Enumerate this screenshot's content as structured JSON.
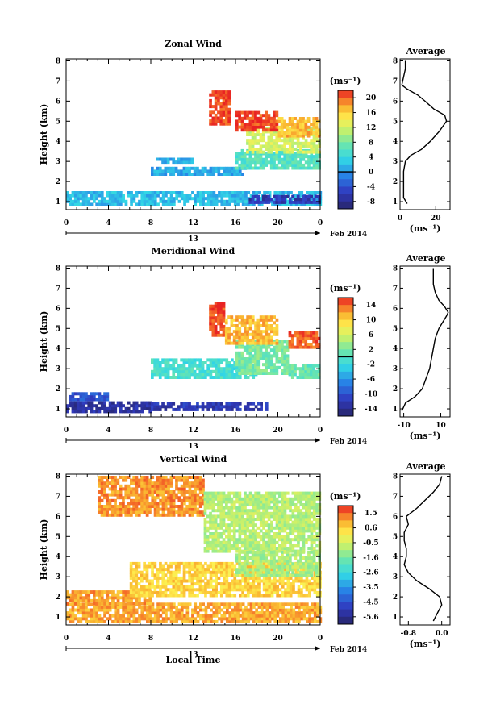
{
  "chart_data": [
    {
      "type": "heatmap",
      "title": "Zonal Wind",
      "ylabel": "Height (km)",
      "xlabel": "",
      "x_ticks": [
        "0",
        "4",
        "8",
        "12",
        "16",
        "20",
        "0"
      ],
      "y_ticks": [
        "1",
        "2",
        "3",
        "4",
        "5",
        "6",
        "7",
        "8"
      ],
      "xlim": [
        0,
        24
      ],
      "ylim": [
        0.6,
        8.1
      ],
      "date_day": "13",
      "date_label": "Feb 2014",
      "colorbar": {
        "unit": "(ms⁻¹)",
        "ticks": [
          "20",
          "16",
          "12",
          "8",
          "4",
          "0",
          "-4",
          "-8"
        ],
        "range": [
          -10,
          22
        ],
        "marker": 0
      },
      "regions": [
        {
          "x": [
            0,
            24
          ],
          "y": [
            0.8,
            1.5
          ],
          "value": 2
        },
        {
          "x": [
            17,
            24
          ],
          "y": [
            0.9,
            1.3
          ],
          "value": -6
        },
        {
          "x": [
            8,
            17
          ],
          "y": [
            2.3,
            2.6
          ],
          "value": 1
        },
        {
          "x": [
            8.5,
            12
          ],
          "y": [
            2.9,
            3.1
          ],
          "value": 1
        },
        {
          "x": [
            16,
            24
          ],
          "y": [
            2.6,
            3.6
          ],
          "value": 6
        },
        {
          "x": [
            17,
            24
          ],
          "y": [
            3.4,
            4.6
          ],
          "value": 12
        },
        {
          "x": [
            13.5,
            15.3
          ],
          "y": [
            4.8,
            6.4
          ],
          "value": 21
        },
        {
          "x": [
            16,
            20
          ],
          "y": [
            4.5,
            5.5
          ],
          "value": 21
        },
        {
          "x": [
            20,
            24
          ],
          "y": [
            4.2,
            5.1
          ],
          "value": 17
        }
      ],
      "average": {
        "title": "Average",
        "xlabel": "(ms⁻¹)",
        "x_ticks": [
          "0",
          "20"
        ],
        "xlim": [
          0,
          28
        ],
        "height_km": [
          0.9,
          1.2,
          1.5,
          2.0,
          2.5,
          3.0,
          3.3,
          3.6,
          4.0,
          4.5,
          5.0,
          5.3,
          5.6,
          6.0,
          6.3,
          6.6,
          6.8,
          7.2,
          7.6,
          8.0
        ],
        "value": [
          4,
          2,
          2,
          2,
          2,
          3,
          6,
          12,
          17,
          22,
          26,
          25,
          19,
          14,
          10,
          4,
          1,
          2,
          3,
          3
        ]
      }
    },
    {
      "type": "heatmap",
      "title": "Meridional Wind",
      "ylabel": "Height (km)",
      "xlabel": "",
      "x_ticks": [
        "0",
        "4",
        "8",
        "12",
        "16",
        "20",
        "0"
      ],
      "y_ticks": [
        "1",
        "2",
        "3",
        "4",
        "5",
        "6",
        "7",
        "8"
      ],
      "xlim": [
        0,
        24
      ],
      "ylim": [
        0.6,
        8.1
      ],
      "date_day": "13",
      "date_label": "Feb 2014",
      "colorbar": {
        "unit": "(ms⁻¹)",
        "ticks": [
          "14",
          "10",
          "6",
          "2",
          "-2",
          "-6",
          "-10",
          "-14"
        ],
        "range": [
          -16,
          16
        ],
        "marker": 0
      },
      "regions": [
        {
          "x": [
            0,
            8
          ],
          "y": [
            0.8,
            1.3
          ],
          "value": -13
        },
        {
          "x": [
            0,
            4
          ],
          "y": [
            1.4,
            1.7
          ],
          "value": -10
        },
        {
          "x": [
            8,
            19
          ],
          "y": [
            0.9,
            1.3
          ],
          "value": -12
        },
        {
          "x": [
            8,
            18
          ],
          "y": [
            2.5,
            3.5
          ],
          "value": -1
        },
        {
          "x": [
            16,
            21
          ],
          "y": [
            2.7,
            4.3
          ],
          "value": 2
        },
        {
          "x": [
            21,
            24
          ],
          "y": [
            2.5,
            3.2
          ],
          "value": 1
        },
        {
          "x": [
            13.5,
            15
          ],
          "y": [
            4.6,
            6.2
          ],
          "value": 15
        },
        {
          "x": [
            15,
            20
          ],
          "y": [
            4.2,
            5.6
          ],
          "value": 11
        },
        {
          "x": [
            21,
            24
          ],
          "y": [
            4.0,
            4.8
          ],
          "value": 14
        }
      ],
      "average": {
        "title": "Average",
        "xlabel": "(ms⁻¹)",
        "x_ticks": [
          "-10",
          "10"
        ],
        "xlim": [
          -12,
          15
        ],
        "height_km": [
          0.9,
          1.3,
          1.6,
          2.0,
          2.5,
          3.0,
          3.5,
          4.0,
          4.5,
          5.0,
          5.3,
          5.6,
          5.8,
          6.1,
          6.4,
          6.8,
          7.2,
          7.6,
          8.0
        ],
        "value": [
          -11,
          -9,
          -4,
          0,
          2,
          4,
          5,
          6,
          7,
          9,
          11,
          13,
          14,
          12,
          9,
          7,
          6,
          6,
          6
        ]
      }
    },
    {
      "type": "heatmap",
      "title": "Vertical Wind",
      "ylabel": "Height (km)",
      "xlabel": "Local Time",
      "x_ticks": [
        "0",
        "4",
        "8",
        "12",
        "16",
        "20",
        "0"
      ],
      "y_ticks": [
        "1",
        "2",
        "3",
        "4",
        "5",
        "6",
        "7",
        "8"
      ],
      "xlim": [
        0,
        24
      ],
      "ylim": [
        0.6,
        8.1
      ],
      "date_day": "13",
      "date_label": "Feb 2014",
      "colorbar": {
        "unit": "(ms⁻¹)",
        "ticks": [
          "1.5",
          "0.6",
          "-0.5",
          "-1.6",
          "-2.6",
          "-3.5",
          "-4.5",
          "-5.6"
        ],
        "range": [
          -6.2,
          2.0
        ],
        "marker": null
      },
      "regions": [
        {
          "x": [
            0,
            24
          ],
          "y": [
            0.7,
            1.6
          ],
          "value": 0.9
        },
        {
          "x": [
            0,
            8
          ],
          "y": [
            1.6,
            2.2
          ],
          "value": 1.0
        },
        {
          "x": [
            6,
            24
          ],
          "y": [
            2.0,
            3.6
          ],
          "value": 0.4
        },
        {
          "x": [
            3,
            13
          ],
          "y": [
            6.0,
            8.0
          ],
          "value": 1.1
        },
        {
          "x": [
            13,
            24
          ],
          "y": [
            4.2,
            7.2
          ],
          "value": -0.9
        },
        {
          "x": [
            16,
            24
          ],
          "y": [
            3.0,
            4.2
          ],
          "value": -1.0
        }
      ],
      "average": {
        "title": "Average",
        "xlabel": "(ms⁻¹)",
        "x_ticks": [
          "-0.8",
          "0.0"
        ],
        "xlim": [
          -1.0,
          0.2
        ],
        "height_km": [
          0.8,
          1.2,
          1.6,
          2.0,
          2.4,
          2.8,
          3.2,
          3.6,
          4.0,
          4.4,
          4.8,
          5.2,
          5.6,
          6.0,
          6.4,
          6.8,
          7.2,
          7.6,
          8.0
        ],
        "value": [
          -0.2,
          -0.1,
          0.0,
          -0.05,
          -0.3,
          -0.6,
          -0.8,
          -0.9,
          -0.85,
          -0.85,
          -0.9,
          -0.9,
          -0.8,
          -0.85,
          -0.6,
          -0.4,
          -0.2,
          -0.05,
          0.0
        ]
      }
    }
  ]
}
